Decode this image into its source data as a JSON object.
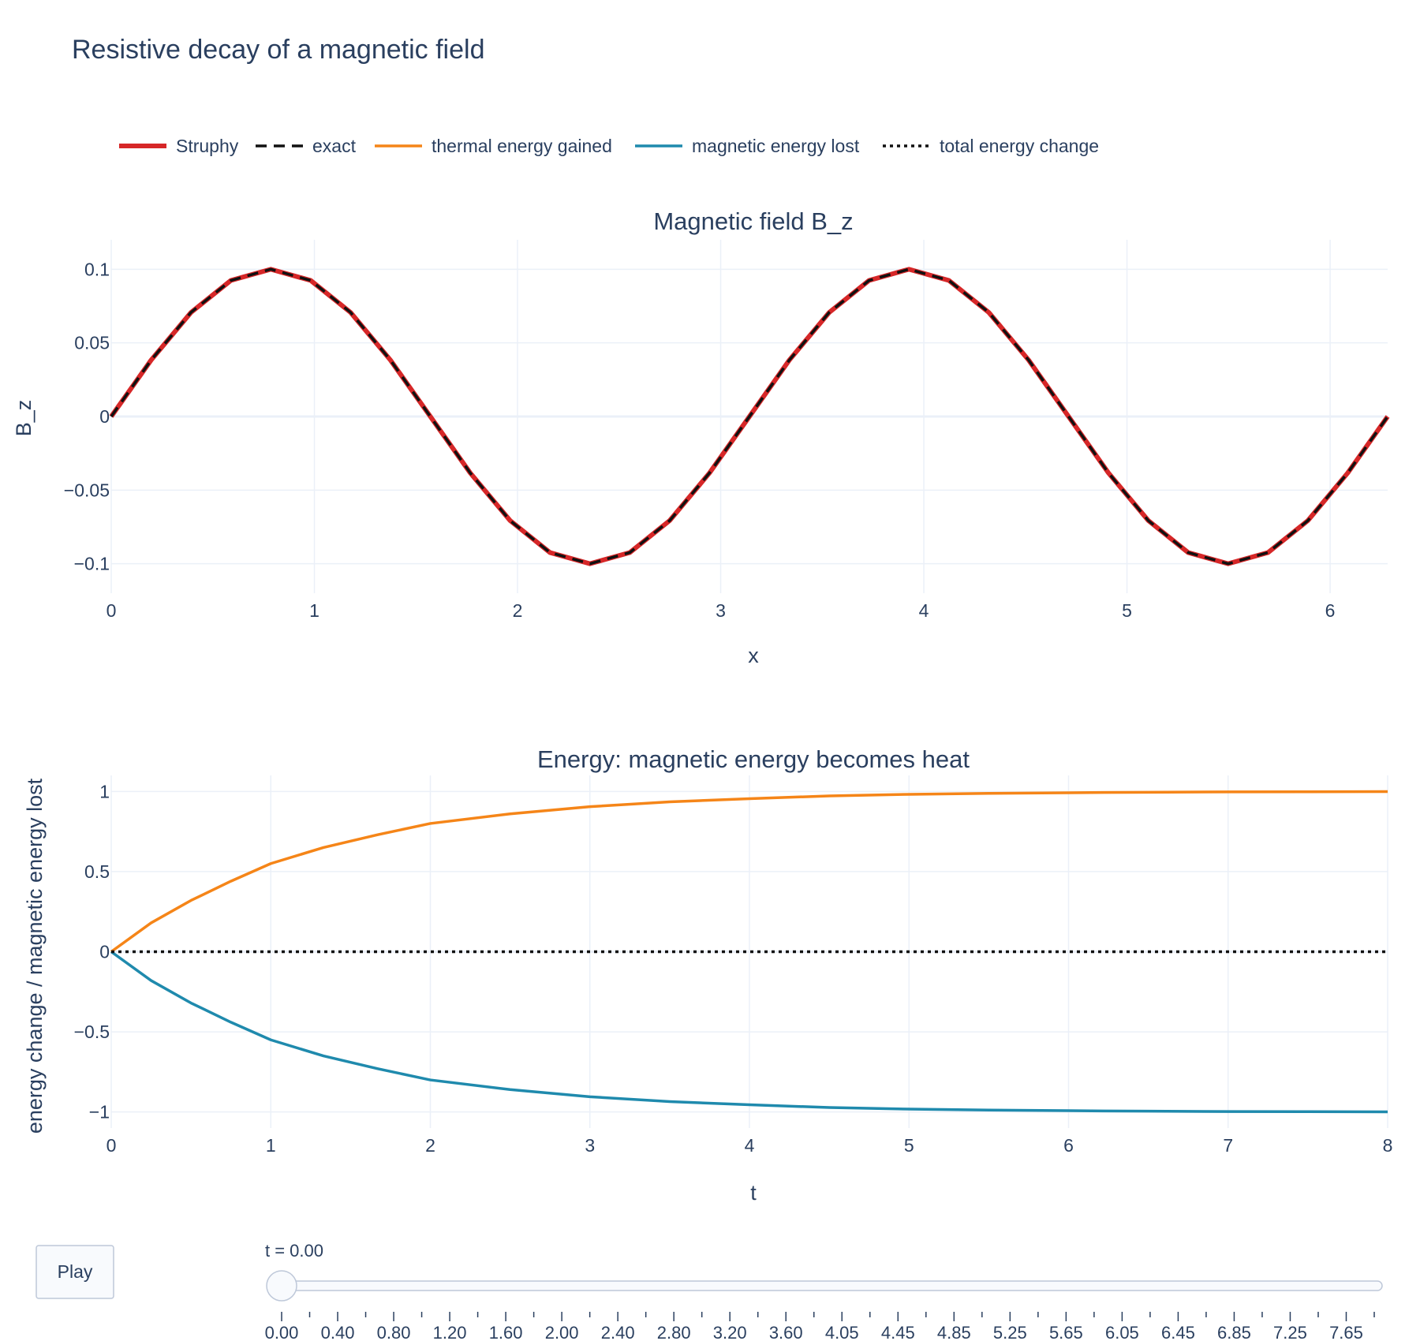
{
  "title": "Resistive decay of a magnetic field",
  "legend": [
    {
      "label": "Struphy",
      "color": "#d62728",
      "style": "solid-thick"
    },
    {
      "label": "exact",
      "color": "#111111",
      "style": "dash"
    },
    {
      "label": "thermal energy gained",
      "color": "#f58518",
      "style": "solid"
    },
    {
      "label": "magnetic energy lost",
      "color": "#1f8aad",
      "style": "solid"
    },
    {
      "label": "total energy change",
      "color": "#111111",
      "style": "dot"
    }
  ],
  "colors": {
    "struphy": "#d62728",
    "exact": "#111111",
    "thermal": "#f58518",
    "magnetic": "#1f8aad",
    "total": "#111111",
    "text": "#2a3f5f",
    "grid": "#ebf0f8"
  },
  "controls": {
    "play_label": "Play",
    "slider_current": "t = 0.00",
    "slider_value": 0,
    "slider_labels": [
      "0.00",
      "0.40",
      "0.80",
      "1.20",
      "1.60",
      "2.00",
      "2.40",
      "2.80",
      "3.20",
      "3.60",
      "4.05",
      "4.45",
      "4.85",
      "5.25",
      "5.65",
      "6.05",
      "6.45",
      "6.85",
      "7.25",
      "7.65"
    ]
  },
  "chart_data": [
    {
      "type": "line",
      "title": "Magnetic field B_z",
      "xlabel": "x",
      "ylabel": "B_z",
      "xlim": [
        0,
        6.2832
      ],
      "ylim": [
        -0.12,
        0.12
      ],
      "xticks": [
        "0",
        "1",
        "2",
        "3",
        "4",
        "5",
        "6"
      ],
      "yticks": [
        "0.1",
        "0.05",
        "0",
        "−0.05",
        "−0.1"
      ],
      "xtick_values": [
        0,
        1,
        2,
        3,
        4,
        5,
        6
      ],
      "ytick_values": [
        0.1,
        0.05,
        0,
        -0.05,
        -0.1
      ],
      "x": [
        0,
        0.1963,
        0.3927,
        0.589,
        0.7854,
        0.9817,
        1.1781,
        1.3744,
        1.5708,
        1.7671,
        1.9635,
        2.1598,
        2.3562,
        2.5525,
        2.7489,
        2.9452,
        3.1416,
        3.3379,
        3.5343,
        3.7306,
        3.927,
        4.1233,
        4.3197,
        4.516,
        4.7124,
        4.9087,
        5.1051,
        5.3014,
        5.4978,
        5.6941,
        5.8905,
        6.0868,
        6.2832
      ],
      "series": [
        {
          "name": "Struphy",
          "values": [
            0,
            0.0383,
            0.0707,
            0.0924,
            0.1,
            0.0924,
            0.0707,
            0.0383,
            0,
            -0.0383,
            -0.0707,
            -0.0924,
            -0.1,
            -0.0924,
            -0.0707,
            -0.0383,
            0,
            0.0383,
            0.0707,
            0.0924,
            0.1,
            0.0924,
            0.0707,
            0.0383,
            0,
            -0.0383,
            -0.0707,
            -0.0924,
            -0.1,
            -0.0924,
            -0.0707,
            -0.0383,
            0
          ]
        },
        {
          "name": "exact",
          "values": [
            0,
            0.0383,
            0.0707,
            0.0924,
            0.1,
            0.0924,
            0.0707,
            0.0383,
            0,
            -0.0383,
            -0.0707,
            -0.0924,
            -0.1,
            -0.0924,
            -0.0707,
            -0.0383,
            0,
            0.0383,
            0.0707,
            0.0924,
            0.1,
            0.0924,
            0.0707,
            0.0383,
            0,
            -0.0383,
            -0.0707,
            -0.0924,
            -0.1,
            -0.0924,
            -0.0707,
            -0.0383,
            0
          ]
        }
      ]
    },
    {
      "type": "line",
      "title": "Energy: magnetic energy becomes heat",
      "xlabel": "t",
      "ylabel": "energy change / magnetic energy lost",
      "xlim": [
        0,
        8
      ],
      "ylim": [
        -1.1,
        1.1
      ],
      "xticks": [
        "0",
        "1",
        "2",
        "3",
        "4",
        "5",
        "6",
        "7",
        "8"
      ],
      "yticks": [
        "1",
        "0.5",
        "0",
        "−0.5",
        "−1"
      ],
      "xtick_values": [
        0,
        1,
        2,
        3,
        4,
        5,
        6,
        7,
        8
      ],
      "ytick_values": [
        1,
        0.5,
        0,
        -0.5,
        -1
      ],
      "x": [
        0,
        0.25,
        0.5,
        0.75,
        1,
        1.33,
        1.67,
        2,
        2.5,
        3,
        3.5,
        4,
        4.5,
        5,
        5.5,
        6,
        6.5,
        7,
        7.5,
        8
      ],
      "series": [
        {
          "name": "thermal energy gained",
          "values": [
            0,
            0.18,
            0.32,
            0.44,
            0.55,
            0.65,
            0.73,
            0.8,
            0.86,
            0.905,
            0.935,
            0.955,
            0.972,
            0.982,
            0.988,
            0.992,
            0.995,
            0.997,
            0.998,
            0.999
          ]
        },
        {
          "name": "magnetic energy lost",
          "values": [
            0,
            -0.18,
            -0.32,
            -0.44,
            -0.55,
            -0.65,
            -0.73,
            -0.8,
            -0.86,
            -0.905,
            -0.935,
            -0.955,
            -0.972,
            -0.982,
            -0.988,
            -0.992,
            -0.995,
            -0.997,
            -0.998,
            -0.999
          ]
        },
        {
          "name": "total energy change",
          "values": [
            0,
            0,
            0,
            0,
            0,
            0,
            0,
            0,
            0,
            0,
            0,
            0,
            0,
            0,
            0,
            0,
            0,
            0,
            0,
            0
          ]
        }
      ]
    }
  ]
}
